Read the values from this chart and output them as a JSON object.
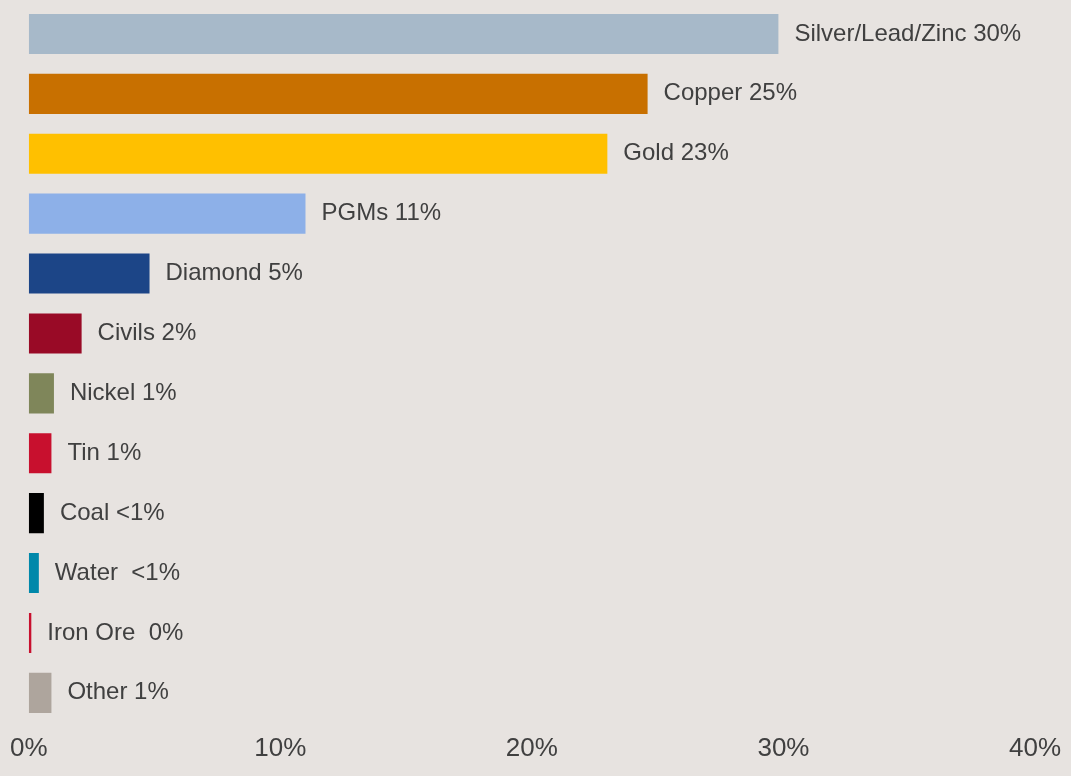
{
  "chart_data": {
    "type": "bar",
    "orientation": "horizontal",
    "categories": [
      "Silver/Lead/Zinc",
      "Copper",
      "Gold",
      "PGMs",
      "Diamond",
      "Civils",
      "Nickel",
      "Tin",
      "Coal",
      "Water",
      "Iron Ore",
      "Other"
    ],
    "values": [
      29.8,
      24.6,
      23,
      11,
      4.8,
      2.1,
      1,
      0.9,
      0.6,
      0.4,
      0.1,
      0.9
    ],
    "value_labels": [
      "30%",
      "25%",
      "23%",
      "11%",
      "5%",
      "2%",
      "1%",
      "1%",
      "<1%",
      " <1%",
      " 0%",
      "1%"
    ],
    "colors": [
      "#a7b9c9",
      "#c87000",
      "#ffc000",
      "#8db0e8",
      "#1c4587",
      "#990a26",
      "#7f865a",
      "#c8102e",
      "#000000",
      "#0088aa",
      "#c8102e",
      "#aea59d"
    ],
    "xlim": [
      0,
      40
    ],
    "xticks": [
      {
        "value": 0,
        "label": "0%"
      },
      {
        "value": 10,
        "label": "10%"
      },
      {
        "value": 20,
        "label": "20%"
      },
      {
        "value": 30,
        "label": "30%"
      },
      {
        "value": 40,
        "label": "40%"
      }
    ],
    "tick_labels": "x",
    "grid": false,
    "legend": false
  }
}
